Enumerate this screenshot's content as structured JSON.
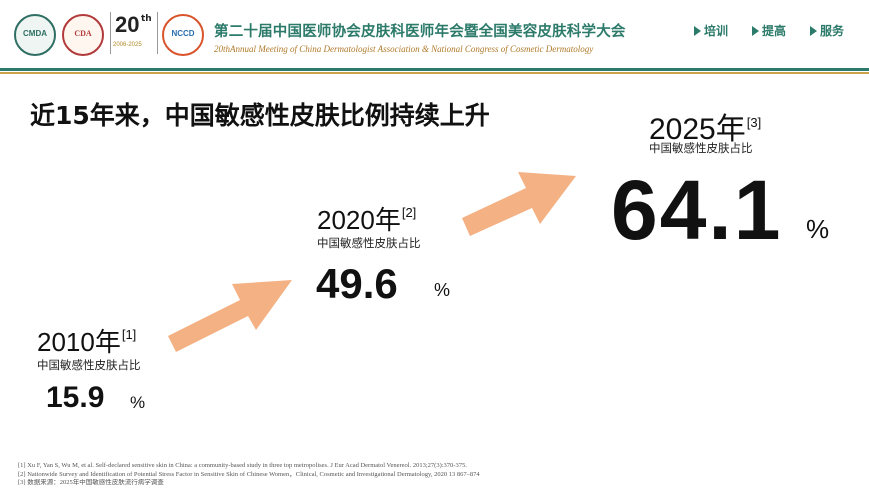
{
  "header": {
    "logos": [
      {
        "name": "cmda-logo",
        "text": "CMDA"
      },
      {
        "name": "cda-logo",
        "text": "CDA"
      },
      {
        "name": "anniversary-logo",
        "big": "20",
        "sup": "th",
        "years": "2006-2025"
      },
      {
        "name": "nccd-logo",
        "text": "NCCD"
      }
    ],
    "conference_cn": "第二十届中国医师协会皮肤科医师年会暨全国美容皮肤科学大会",
    "conference_en": "20thAnnual Meeting of China Dermatologist Association & National Congress of Cosmetic Dermatology",
    "nav": [
      "培训",
      "提高",
      "服务"
    ],
    "colors": {
      "accent": "#2c7a6a",
      "gold": "#c9a24a",
      "arrow": "#f4b183"
    }
  },
  "slide": {
    "title": "近15年来，中国敏感性皮肤比例持续上升",
    "points": [
      {
        "year": "2010年",
        "ref": "[1]",
        "caption": "中国敏感性皮肤占比",
        "value": "15.9",
        "unit": "%"
      },
      {
        "year": "2020年",
        "ref": "[2]",
        "caption": "中国敏感性皮肤占比",
        "value": "49.6",
        "unit": "%"
      },
      {
        "year": "2025年",
        "ref": "[3]",
        "caption": "中国敏感性皮肤占比",
        "value": "64.1",
        "unit": "%"
      }
    ]
  },
  "references": [
    "[1] Xu F, Yan S, Wu M, et al. Self-declared sensitive skin in China: a community-based study in three top metropolises. J Eur Acad Dermatol Venereol. 2013;27(3):370-375.",
    "[2] Nationwide Survey and Identification of Potential Stress Factor in Sensitive Skin of Chinese Women，Clinical, Cosmetic and Investigational Dermatology, 2020 13 867–874",
    "[3] 数据来源：2025年中国敏感性皮肤流行病学调查"
  ]
}
